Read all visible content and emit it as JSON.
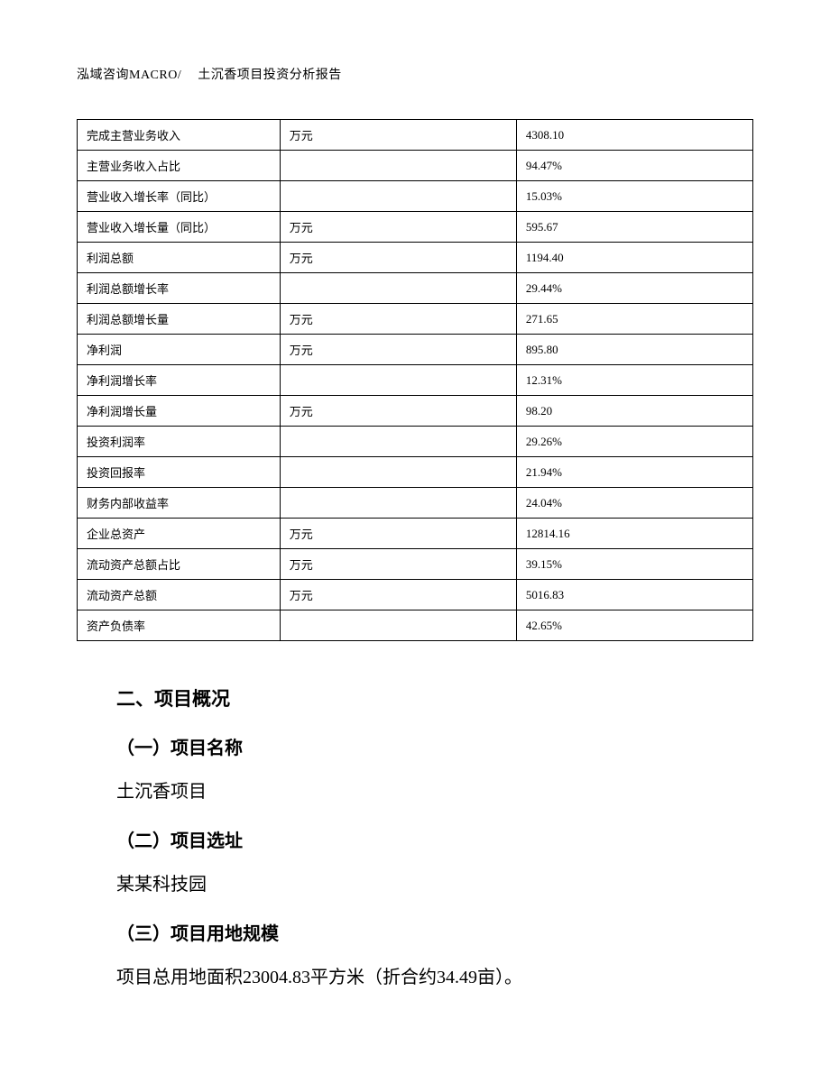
{
  "header": {
    "company": "泓域咨询MACRO/",
    "title": "土沉香项目投资分析报告"
  },
  "table": {
    "rows": [
      {
        "label": "完成主营业务收入",
        "unit": "万元",
        "value": "4308.10"
      },
      {
        "label": "主营业务收入占比",
        "unit": "",
        "value": "94.47%"
      },
      {
        "label": "营业收入增长率（同比）",
        "unit": "",
        "value": "15.03%"
      },
      {
        "label": "营业收入增长量（同比）",
        "unit": "万元",
        "value": "595.67"
      },
      {
        "label": "利润总额",
        "unit": "万元",
        "value": "1194.40"
      },
      {
        "label": "利润总额增长率",
        "unit": "",
        "value": "29.44%"
      },
      {
        "label": "利润总额增长量",
        "unit": "万元",
        "value": "271.65"
      },
      {
        "label": "净利润",
        "unit": "万元",
        "value": "895.80"
      },
      {
        "label": "净利润增长率",
        "unit": "",
        "value": "12.31%"
      },
      {
        "label": "净利润增长量",
        "unit": "万元",
        "value": "98.20"
      },
      {
        "label": "投资利润率",
        "unit": "",
        "value": "29.26%"
      },
      {
        "label": "投资回报率",
        "unit": "",
        "value": "21.94%"
      },
      {
        "label": "财务内部收益率",
        "unit": "",
        "value": "24.04%"
      },
      {
        "label": "企业总资产",
        "unit": "万元",
        "value": "12814.16"
      },
      {
        "label": "流动资产总额占比",
        "unit": "万元",
        "value": "39.15%"
      },
      {
        "label": "流动资产总额",
        "unit": "万元",
        "value": "5016.83"
      },
      {
        "label": "资产负债率",
        "unit": "",
        "value": "42.65%"
      }
    ]
  },
  "sections": {
    "main_heading": "二、项目概况",
    "sub1_heading": "（一）项目名称",
    "sub1_text": "土沉香项目",
    "sub2_heading": "（二）项目选址",
    "sub2_text": "某某科技园",
    "sub3_heading": "（三）项目用地规模",
    "sub3_text": "项目总用地面积23004.83平方米（折合约34.49亩）。"
  }
}
